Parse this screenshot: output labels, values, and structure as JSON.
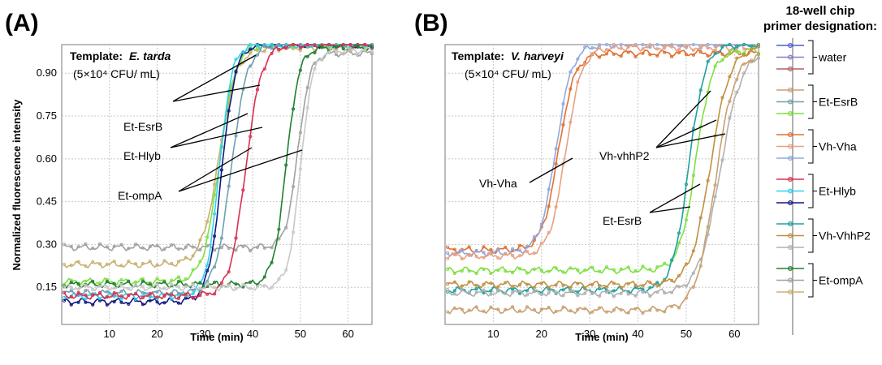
{
  "legend": {
    "title_line1": "18-well chip",
    "title_line2": "primer designation:",
    "groups": [
      {
        "label": "water",
        "colors": [
          "#4a5fd0",
          "#8f78c8",
          "#b26060"
        ]
      },
      {
        "label": "Et-EsrB",
        "colors": [
          "#c8a070",
          "#6fa0b0",
          "#7de040"
        ]
      },
      {
        "label": "Vh-Vha",
        "colors": [
          "#e07030",
          "#e8a080",
          "#90a8e0"
        ]
      },
      {
        "label": "Et-Hlyb",
        "colors": [
          "#d83050",
          "#30d0f0",
          "#101880"
        ]
      },
      {
        "label": "Vh-VhhP2",
        "colors": [
          "#20a0a0",
          "#c09040",
          "#b0b0b0"
        ]
      },
      {
        "label": "Et-ompA",
        "colors": [
          "#208030",
          "#a0a0a0",
          "#c8b070"
        ]
      }
    ]
  },
  "chart_data": [
    {
      "panel": "(A)",
      "type": "line",
      "template_prefix": "Template:",
      "template_organism": "E. tarda",
      "template_conc": "(5×10⁴ CFU/ mL)",
      "xlabel": "Time (min)",
      "ylabel": "Normalized fluorescence intensity",
      "xlim": [
        0,
        65
      ],
      "ylim": [
        0.02,
        1.0
      ],
      "xticks": [
        "10",
        "20",
        "30",
        "40",
        "50",
        "60"
      ],
      "yticks": [
        "0.15",
        "0.30",
        "0.45",
        "0.60",
        "0.75",
        "0.90"
      ],
      "grid": true,
      "annotations": [
        "Et-EsrB",
        "Et-Hlyb",
        "Et-ompA"
      ],
      "series": [
        {
          "color": "#a0a0a0",
          "base": 0.29,
          "top": 0.97,
          "mid": 49.5,
          "k": 0.8
        },
        {
          "color": "#c8b070",
          "base": 0.23,
          "top": 0.99,
          "mid": 33.0,
          "k": 0.55
        },
        {
          "color": "#7de040",
          "base": 0.17,
          "top": 1.0,
          "mid": 33.0,
          "k": 0.6
        },
        {
          "color": "#101880",
          "base": 0.1,
          "top": 1.0,
          "mid": 33.5,
          "k": 0.7
        },
        {
          "color": "#30d0f0",
          "base": 0.12,
          "top": 1.0,
          "mid": 33.0,
          "k": 0.75
        },
        {
          "color": "#6fa0b0",
          "base": 0.13,
          "top": 1.0,
          "mid": 35.5,
          "k": 0.6
        },
        {
          "color": "#d83050",
          "base": 0.12,
          "top": 1.0,
          "mid": 38.5,
          "k": 0.6
        },
        {
          "color": "#208030",
          "base": 0.16,
          "top": 0.99,
          "mid": 47.0,
          "k": 0.75
        },
        {
          "color": "#c8c8c8",
          "base": 0.15,
          "top": 0.98,
          "mid": 50.0,
          "k": 0.8
        }
      ]
    },
    {
      "panel": "(B)",
      "type": "line",
      "template_prefix": "Template:",
      "template_organism": "V. harveyi",
      "template_conc": "(5×10⁴ CFU/ mL)",
      "xlabel": "Time (min)",
      "ylabel": "",
      "xlim": [
        0,
        65
      ],
      "ylim": [
        0.02,
        1.0
      ],
      "xticks": [
        "10",
        "20",
        "30",
        "40",
        "50",
        "60"
      ],
      "yticks": [],
      "grid": true,
      "annotations": [
        "Vh-Vha",
        "Vh-vhhP2",
        "Et-EsrB"
      ],
      "series": [
        {
          "color": "#e07030",
          "base": 0.28,
          "top": 0.97,
          "mid": 23.5,
          "k": 0.6
        },
        {
          "color": "#90a8e0",
          "base": 0.27,
          "top": 1.0,
          "mid": 23.0,
          "k": 0.6
        },
        {
          "color": "#e8a080",
          "base": 0.26,
          "top": 0.99,
          "mid": 25.0,
          "k": 0.6
        },
        {
          "color": "#7de040",
          "base": 0.21,
          "top": 0.98,
          "mid": 52.0,
          "k": 0.6
        },
        {
          "color": "#20a0a0",
          "base": 0.14,
          "top": 1.0,
          "mid": 50.5,
          "k": 0.6
        },
        {
          "color": "#c09040",
          "base": 0.16,
          "top": 0.99,
          "mid": 55.0,
          "k": 0.5
        },
        {
          "color": "#b0b0b0",
          "base": 0.13,
          "top": 0.98,
          "mid": 57.0,
          "k": 0.45
        },
        {
          "color": "#c8a070",
          "base": 0.07,
          "top": 0.97,
          "mid": 56.0,
          "k": 0.5
        }
      ]
    }
  ]
}
